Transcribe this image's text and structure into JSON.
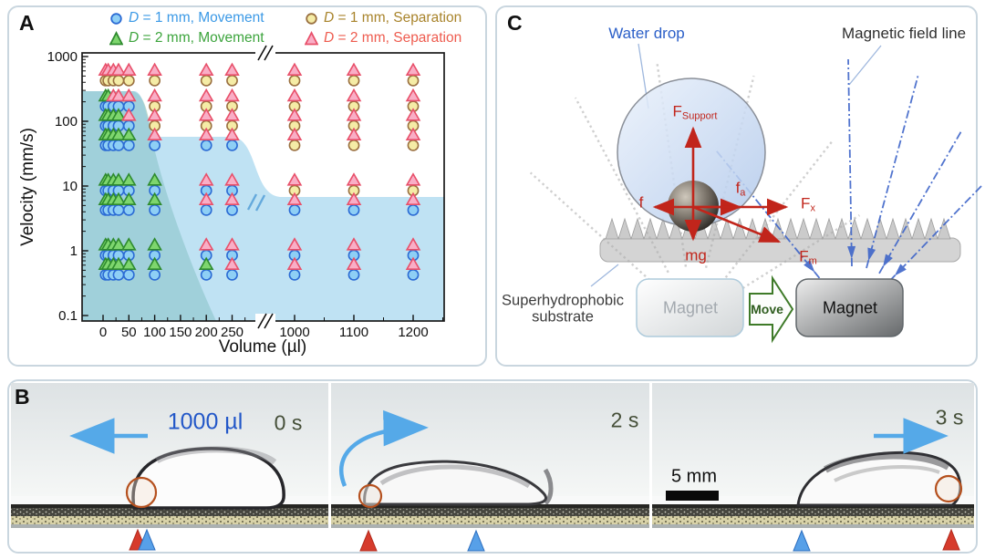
{
  "panel_a": {
    "label": "A",
    "x_axis_label": "Volume (µl)",
    "y_axis_label": "Velocity (mm/s)",
    "legend": [
      {
        "id": "d1-movement",
        "marker": "circle",
        "label_d": "D",
        "label_rest": " = 1 mm, Movement",
        "marker_fill": "#8ECFF5",
        "marker_stroke": "#2B6BD4",
        "text_color": "#3B99E6"
      },
      {
        "id": "d2-movement",
        "marker": "triangle",
        "label_d": "D",
        "label_rest": " = 2 mm, Movement",
        "marker_fill": "#7ED66E",
        "marker_stroke": "#2E8B2E",
        "text_color": "#3CA43C"
      },
      {
        "id": "d1-separation",
        "marker": "circle",
        "label_d": "D",
        "label_rest": " = 1 mm, Separation",
        "marker_fill": "#F5ECA6",
        "marker_stroke": "#9A7040",
        "text_color": "#A8832A"
      },
      {
        "id": "d2-separation",
        "marker": "triangle",
        "label_d": "D",
        "label_rest": " = 2 mm, Separation",
        "marker_fill": "#F9AEC6",
        "marker_stroke": "#E8506A",
        "text_color": "#EE5B4E"
      }
    ],
    "chart_data": {
      "type": "scatter",
      "title": "",
      "xlabel": "Volume (µl)",
      "ylabel": "Velocity (mm/s)",
      "x_scale": "linear-broken",
      "y_scale": "log",
      "x_ticks": [
        0,
        50,
        100,
        150,
        200,
        250,
        1000,
        1100,
        1200
      ],
      "x_minor_ticks": [
        25,
        75,
        125,
        175,
        225,
        275,
        1050,
        1150,
        1250
      ],
      "x_axis_break_between": [
        250,
        1000
      ],
      "y_ticks": [
        1000,
        100,
        10,
        1,
        0.1
      ],
      "ylim": [
        0.1,
        1000
      ],
      "volumes_ul": [
        5,
        10,
        20,
        30,
        50,
        100,
        200,
        250,
        1000,
        1100,
        1200
      ],
      "velocities_mm_s": [
        500,
        200,
        100,
        50,
        10,
        5,
        1,
        0.5
      ],
      "state_legend": {
        "M": "Movement",
        "S": "Separation"
      },
      "d1_1mm_state": [
        [
          "S",
          "S",
          "S",
          "S",
          "S",
          "S",
          "S",
          "S",
          "S",
          "S",
          "S"
        ],
        [
          "M",
          "M",
          "M",
          "M",
          "M",
          "S",
          "S",
          "S",
          "S",
          "S",
          "S"
        ],
        [
          "M",
          "M",
          "M",
          "M",
          "M",
          "S",
          "S",
          "S",
          "S",
          "S",
          "S"
        ],
        [
          "M",
          "M",
          "M",
          "M",
          "M",
          "M",
          "M",
          "M",
          "S",
          "S",
          "S"
        ],
        [
          "M",
          "M",
          "M",
          "M",
          "M",
          "M",
          "M",
          "M",
          "S",
          "S",
          "S"
        ],
        [
          "M",
          "M",
          "M",
          "M",
          "M",
          "M",
          "M",
          "M",
          "M",
          "M",
          "M"
        ],
        [
          "M",
          "M",
          "M",
          "M",
          "M",
          "M",
          "M",
          "M",
          "M",
          "M",
          "M"
        ],
        [
          "M",
          "M",
          "M",
          "M",
          "M",
          "M",
          "M",
          "M",
          "M",
          "M",
          "M"
        ]
      ],
      "d2_2mm_state": [
        [
          "S",
          "S",
          "S",
          "S",
          "S",
          "S",
          "S",
          "S",
          "S",
          "S",
          "S"
        ],
        [
          "M",
          "M",
          "S",
          "S",
          "S",
          "S",
          "S",
          "S",
          "S",
          "S",
          "S"
        ],
        [
          "M",
          "M",
          "M",
          "M",
          "S",
          "S",
          "S",
          "S",
          "S",
          "S",
          "S"
        ],
        [
          "M",
          "M",
          "M",
          "M",
          "M",
          "S",
          "S",
          "S",
          "S",
          "S",
          "S"
        ],
        [
          "M",
          "M",
          "M",
          "M",
          "M",
          "M",
          "S",
          "S",
          "S",
          "S",
          "S"
        ],
        [
          "M",
          "M",
          "M",
          "M",
          "M",
          "M",
          "S",
          "S",
          "S",
          "S",
          "S"
        ],
        [
          "M",
          "M",
          "M",
          "M",
          "M",
          "M",
          "S",
          "S",
          "S",
          "S",
          "S"
        ],
        [
          "M",
          "M",
          "M",
          "M",
          "M",
          "M",
          "M",
          "S",
          "S",
          "S",
          "S"
        ]
      ],
      "regions": [
        {
          "name": "movement-both",
          "color": "rgba(105,168,137,0.42)",
          "description": "shaded region lower-left: movement for both bead sizes"
        },
        {
          "name": "movement-d1",
          "color": "rgba(128,197,232,0.50)",
          "description": "light blue shaded region: movement regime"
        }
      ]
    }
  },
  "panel_c": {
    "label": "C",
    "annotations": {
      "water_drop": "Water drop",
      "magnetic_field_line": "Magnetic field line",
      "substrate_line1": "Superhydrophobic",
      "substrate_line2": "substrate"
    },
    "forces": [
      {
        "main": "F",
        "sub": "Support"
      },
      {
        "main": "f",
        "sub": ""
      },
      {
        "main": "f",
        "sub": "a"
      },
      {
        "main": "F",
        "sub": "x"
      },
      {
        "main": "mg",
        "sub": ""
      },
      {
        "main": "F",
        "sub": "m"
      }
    ],
    "magnet_left": "Magnet",
    "magnet_right": "Magnet",
    "move_label": "Move",
    "colors": {
      "field_line_blue": "#3F66C9",
      "force_red": "#C1251B",
      "move_green": "#3E7A28"
    }
  },
  "panel_b": {
    "label": "B",
    "volume_label": "1000 µl",
    "times": [
      "0 s",
      "2 s",
      "3 s"
    ],
    "scale_bar": "5 mm",
    "marker_colors": {
      "red": "#D63B2C",
      "blue": "#57A0E8"
    }
  }
}
